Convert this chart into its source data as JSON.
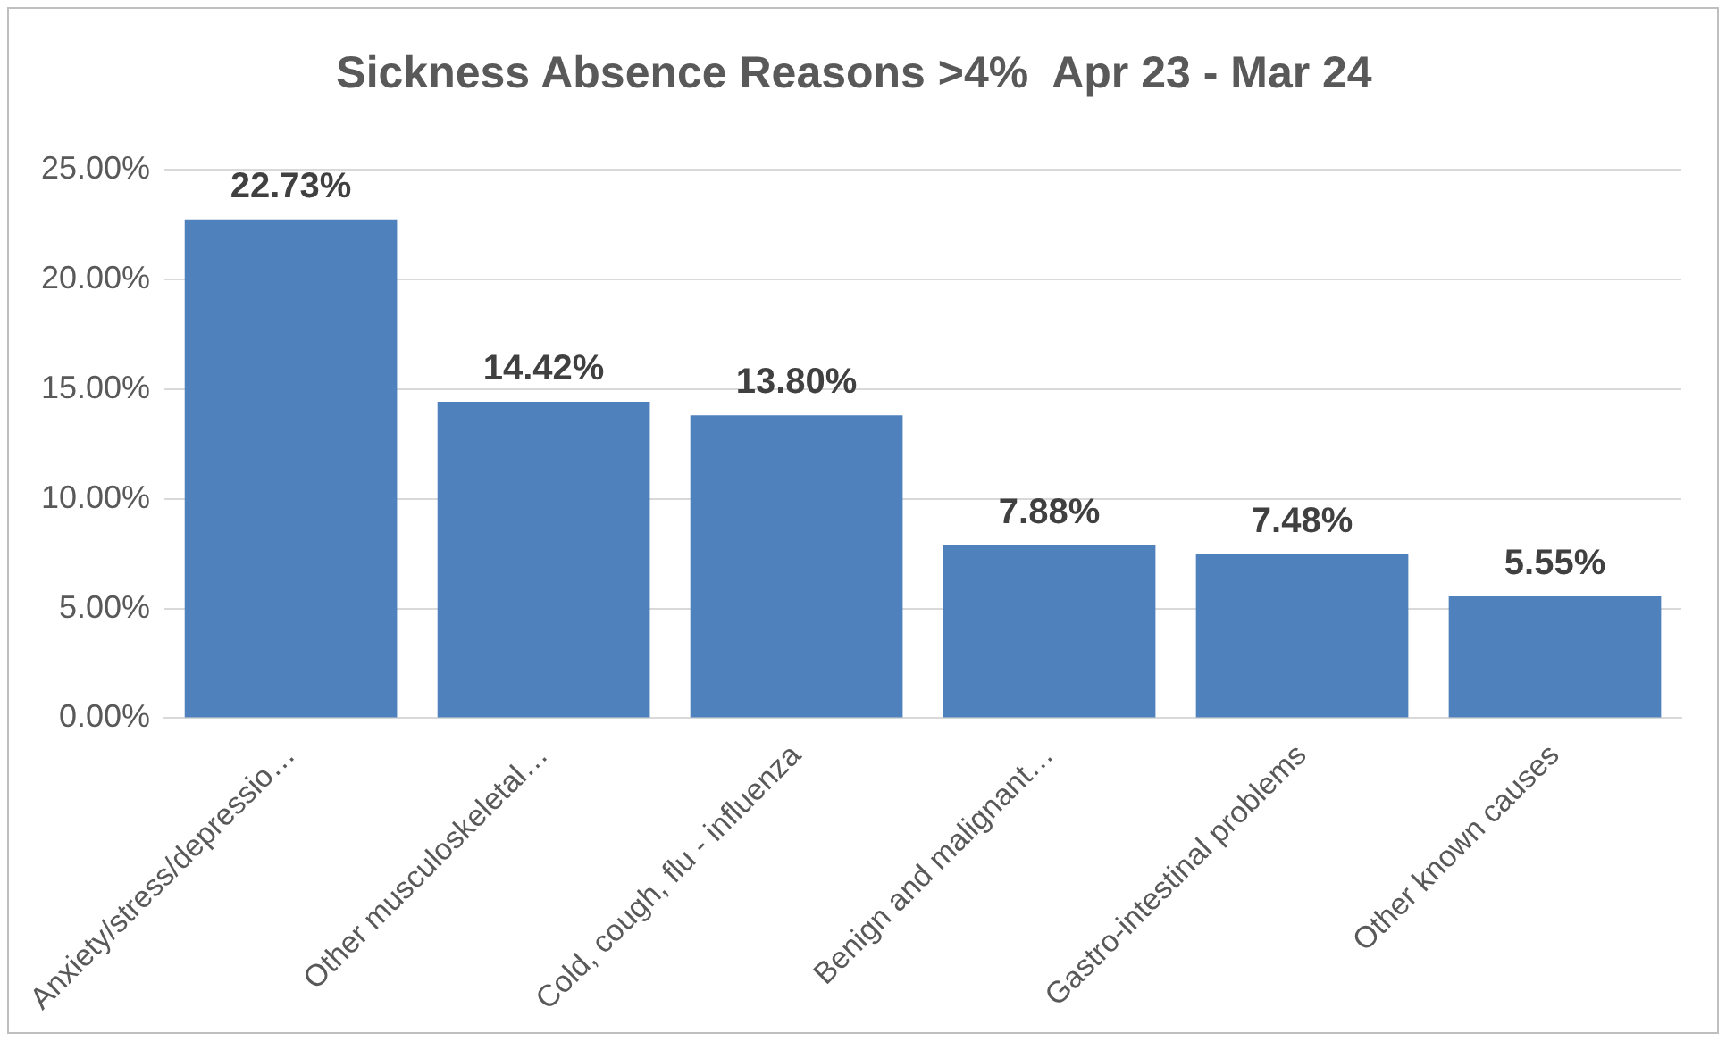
{
  "chart_data": {
    "type": "bar",
    "title": "Sickness Absence Reasons >4%  Apr 23 - Mar 24",
    "categories": [
      "Anxiety/stress/depressio…",
      "Other musculoskeletal…",
      "Cold, cough, flu - influenza",
      "Benign and malignant…",
      "Gastro-intestinal problems",
      "Other known causes"
    ],
    "values": [
      22.73,
      14.42,
      13.8,
      7.88,
      7.48,
      5.55
    ],
    "value_labels": [
      "22.73%",
      "14.42%",
      "13.80%",
      "7.88%",
      "7.48%",
      "5.55%"
    ],
    "color": "#4f81bd",
    "ylim": [
      0,
      25
    ],
    "yticks": [
      {
        "value": 0,
        "label": "0.00%"
      },
      {
        "value": 5,
        "label": "5.00%"
      },
      {
        "value": 10,
        "label": "10.00%"
      },
      {
        "value": 15,
        "label": "15.00%"
      },
      {
        "value": 20,
        "label": "20.00%"
      },
      {
        "value": 25,
        "label": "25.00%"
      }
    ],
    "grid": "y"
  }
}
